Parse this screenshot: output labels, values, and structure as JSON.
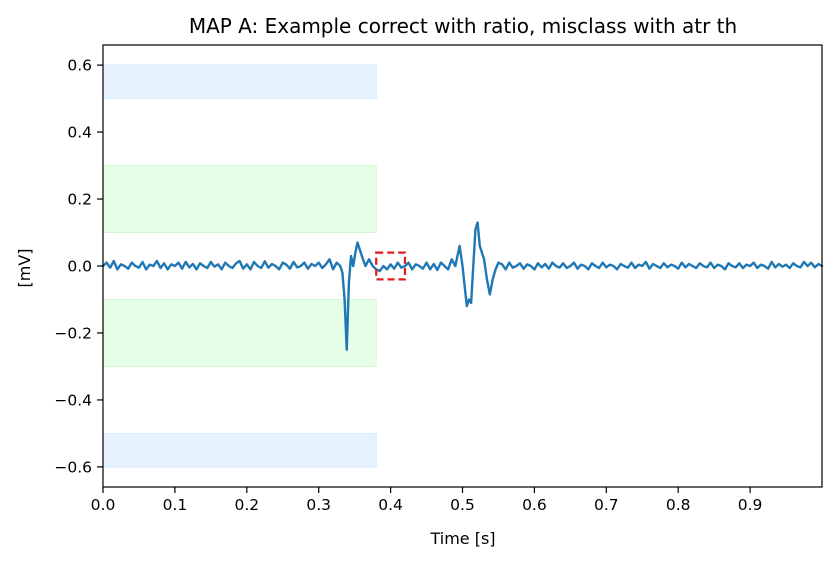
{
  "chart_data": {
    "type": "line",
    "title": "MAP A: Example correct with ratio, misclass with atr th",
    "xlabel": "Time [s]",
    "ylabel": "[mV]",
    "xlim": [
      0.0,
      1.0
    ],
    "ylim": [
      -0.66,
      0.66
    ],
    "xticks": [
      "0.0",
      "0.1",
      "0.2",
      "0.3",
      "0.4",
      "0.5",
      "0.6",
      "0.7",
      "0.8",
      "0.9"
    ],
    "yticks": [
      "0.6",
      "0.4",
      "0.2",
      "0.0",
      "−0.2",
      "−0.4",
      "−0.6"
    ],
    "grid": false,
    "series": [
      {
        "color": "#1f77b4",
        "x": [
          0.0,
          0.005,
          0.01,
          0.015,
          0.02,
          0.025,
          0.03,
          0.035,
          0.04,
          0.045,
          0.05,
          0.055,
          0.06,
          0.065,
          0.07,
          0.075,
          0.08,
          0.085,
          0.09,
          0.095,
          0.1,
          0.105,
          0.11,
          0.115,
          0.12,
          0.125,
          0.13,
          0.135,
          0.14,
          0.145,
          0.15,
          0.155,
          0.16,
          0.165,
          0.17,
          0.175,
          0.18,
          0.185,
          0.19,
          0.195,
          0.2,
          0.205,
          0.21,
          0.215,
          0.22,
          0.225,
          0.23,
          0.235,
          0.24,
          0.245,
          0.25,
          0.255,
          0.26,
          0.265,
          0.27,
          0.275,
          0.28,
          0.285,
          0.29,
          0.295,
          0.3,
          0.305,
          0.31,
          0.315,
          0.32,
          0.325,
          0.33,
          0.333,
          0.336,
          0.339,
          0.342,
          0.345,
          0.348,
          0.351,
          0.354,
          0.357,
          0.36,
          0.365,
          0.37,
          0.375,
          0.38,
          0.385,
          0.39,
          0.395,
          0.4,
          0.405,
          0.41,
          0.415,
          0.42,
          0.425,
          0.43,
          0.435,
          0.44,
          0.445,
          0.45,
          0.455,
          0.46,
          0.465,
          0.47,
          0.475,
          0.48,
          0.485,
          0.49,
          0.493,
          0.496,
          0.5,
          0.503,
          0.506,
          0.509,
          0.512,
          0.515,
          0.518,
          0.521,
          0.524,
          0.527,
          0.53,
          0.534,
          0.538,
          0.542,
          0.546,
          0.55,
          0.555,
          0.56,
          0.565,
          0.57,
          0.575,
          0.58,
          0.585,
          0.59,
          0.595,
          0.6,
          0.605,
          0.61,
          0.615,
          0.62,
          0.625,
          0.63,
          0.635,
          0.64,
          0.645,
          0.65,
          0.655,
          0.66,
          0.665,
          0.67,
          0.675,
          0.68,
          0.685,
          0.69,
          0.695,
          0.7,
          0.705,
          0.71,
          0.715,
          0.72,
          0.725,
          0.73,
          0.735,
          0.74,
          0.745,
          0.75,
          0.755,
          0.76,
          0.765,
          0.77,
          0.775,
          0.78,
          0.785,
          0.79,
          0.795,
          0.8,
          0.805,
          0.81,
          0.815,
          0.82,
          0.825,
          0.83,
          0.835,
          0.84,
          0.845,
          0.85,
          0.855,
          0.86,
          0.865,
          0.87,
          0.875,
          0.88,
          0.885,
          0.89,
          0.895,
          0.9,
          0.905,
          0.91,
          0.915,
          0.92,
          0.925,
          0.93,
          0.935,
          0.94,
          0.945,
          0.95,
          0.955,
          0.96,
          0.965,
          0.97,
          0.975,
          0.98,
          0.985,
          0.99,
          0.995,
          1.0
        ],
        "y": [
          0.0,
          0.01,
          -0.005,
          0.015,
          -0.01,
          0.005,
          0.0,
          -0.008,
          0.01,
          0.0,
          -0.005,
          0.012,
          -0.01,
          0.004,
          0.0,
          0.015,
          -0.006,
          0.008,
          -0.01,
          0.005,
          0.0,
          0.01,
          -0.008,
          0.012,
          -0.004,
          0.006,
          -0.01,
          0.008,
          0.0,
          -0.006,
          0.012,
          -0.002,
          0.005,
          -0.01,
          0.01,
          0.0,
          -0.006,
          0.008,
          0.015,
          -0.008,
          0.005,
          -0.01,
          0.012,
          0.0,
          -0.006,
          0.014,
          -0.005,
          0.006,
          0.0,
          -0.01,
          0.01,
          0.004,
          -0.008,
          0.012,
          -0.004,
          0.0,
          0.01,
          -0.008,
          0.006,
          0.0,
          0.01,
          -0.006,
          0.005,
          0.02,
          -0.01,
          0.01,
          0.0,
          -0.02,
          -0.1,
          -0.25,
          -0.05,
          0.03,
          0.0,
          0.04,
          0.07,
          0.05,
          0.03,
          0.0,
          0.02,
          0.0,
          -0.01,
          -0.015,
          0.0,
          -0.01,
          0.005,
          -0.008,
          0.01,
          -0.005,
          0.0,
          0.01,
          -0.01,
          0.005,
          0.0,
          -0.008,
          0.01,
          -0.01,
          0.006,
          -0.012,
          0.01,
          0.0,
          -0.01,
          0.02,
          0.0,
          0.03,
          0.06,
          0.0,
          -0.06,
          -0.12,
          -0.1,
          -0.11,
          0.0,
          0.11,
          0.13,
          0.06,
          0.04,
          0.02,
          -0.04,
          -0.085,
          -0.04,
          -0.01,
          0.01,
          0.005,
          -0.01,
          0.01,
          -0.005,
          0.0,
          0.008,
          -0.008,
          0.005,
          0.0,
          -0.01,
          0.008,
          -0.004,
          0.006,
          -0.008,
          0.01,
          0.0,
          -0.005,
          0.008,
          -0.006,
          0.0,
          0.01,
          -0.008,
          0.004,
          0.0,
          -0.01,
          0.008,
          0.0,
          -0.006,
          0.01,
          -0.004,
          0.004,
          0.0,
          -0.01,
          0.006,
          0.0,
          -0.005,
          0.01,
          -0.006,
          0.004,
          0.0,
          0.012,
          -0.008,
          0.006,
          0.0,
          -0.006,
          0.008,
          -0.004,
          0.004,
          0.0,
          -0.008,
          0.01,
          -0.004,
          0.006,
          0.0,
          -0.006,
          0.008,
          0.0,
          -0.004,
          0.01,
          -0.006,
          0.004,
          0.0,
          -0.01,
          0.008,
          0.0,
          -0.004,
          0.008,
          -0.006,
          0.004,
          0.0,
          0.01,
          -0.006,
          0.004,
          0.0,
          -0.008,
          0.012,
          -0.004,
          0.006,
          -0.002,
          0.004,
          -0.006,
          0.008,
          0.0,
          -0.004,
          0.012,
          0.0,
          0.01,
          -0.004,
          0.006,
          0.0
        ]
      }
    ],
    "bands": [
      {
        "kind": "blue",
        "color": "#e6f3ff",
        "x": [
          0.0,
          0.38
        ],
        "y": [
          0.5,
          0.6
        ]
      },
      {
        "kind": "green",
        "color": "#e6ffe6",
        "x": [
          0.0,
          0.38
        ],
        "y": [
          0.1,
          0.3
        ]
      },
      {
        "kind": "green",
        "color": "#e6ffe6",
        "x": [
          0.0,
          0.38
        ],
        "y": [
          -0.3,
          -0.1
        ]
      },
      {
        "kind": "blue",
        "color": "#e6f3ff",
        "x": [
          0.0,
          0.38
        ],
        "y": [
          -0.6,
          -0.5
        ]
      }
    ],
    "highlight_box": {
      "color": "#e31a1c",
      "x": [
        0.38,
        0.42
      ],
      "y": [
        -0.04,
        0.04
      ]
    }
  }
}
